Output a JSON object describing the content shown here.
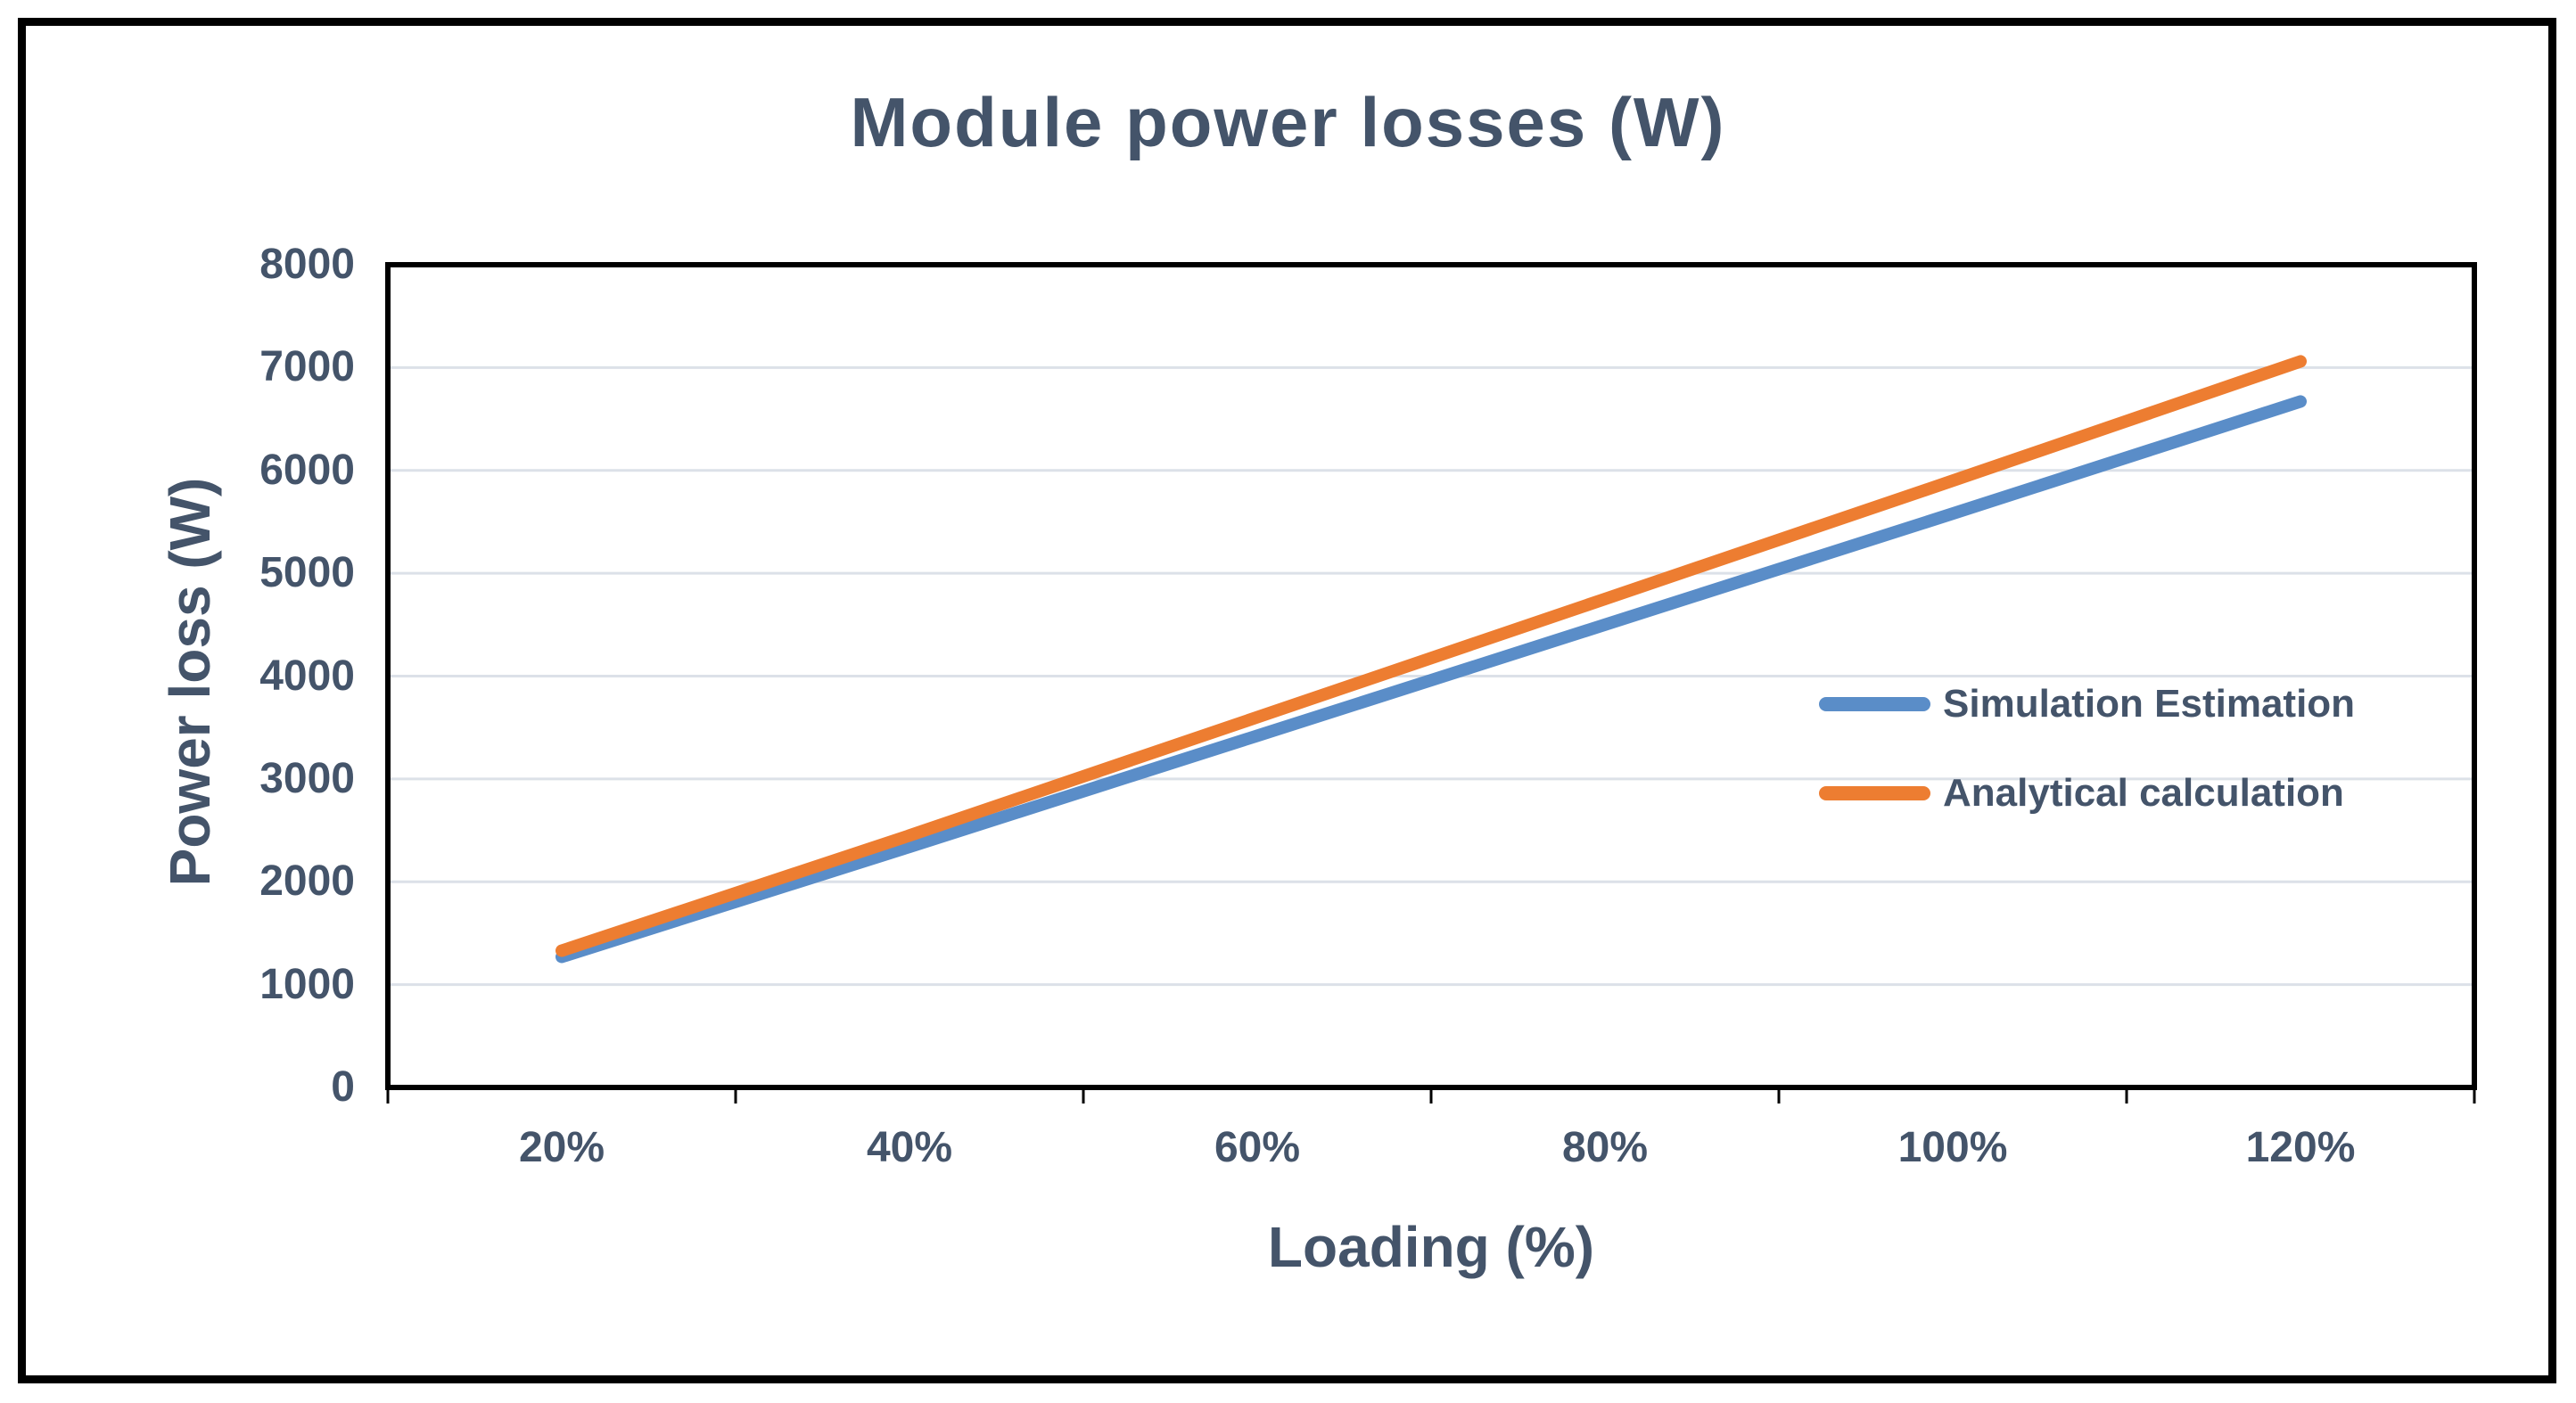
{
  "chart_data": {
    "type": "line",
    "title": "Module power losses (W)",
    "xlabel": "Loading (%)",
    "ylabel": "Power loss (W)",
    "categories": [
      "20%",
      "40%",
      "60%",
      "80%",
      "100%",
      "120%"
    ],
    "series": [
      {
        "name": "Simulation Estimation",
        "color": "#5A8DC8",
        "values": [
          1270,
          2340,
          3420,
          4500,
          5580,
          6670
        ]
      },
      {
        "name": "Analytical calculation",
        "color": "#ED7D31",
        "values": [
          1330,
          2450,
          3600,
          4750,
          5900,
          7060
        ]
      }
    ],
    "ylim": [
      0,
      8000
    ],
    "ytick_step": 1000,
    "grid": true,
    "legend_position": "middle-right",
    "line_width": 14
  },
  "colors": {
    "text": "#44546A",
    "gridline": "#DCE1E8",
    "plot_border": "#000000",
    "outer_frame": "#000000",
    "background": "#FFFFFF"
  }
}
